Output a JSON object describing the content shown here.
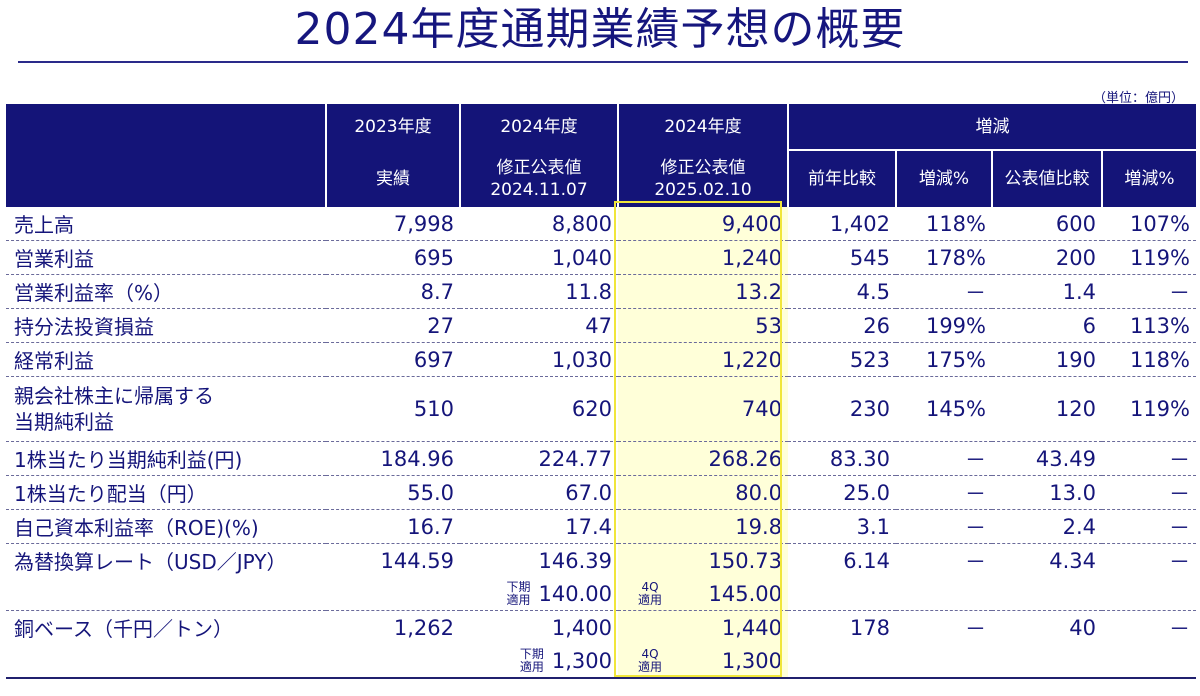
{
  "page": {
    "title": "2024年度通期業績予想の概要",
    "unit": "（単位：億円）"
  },
  "header": {
    "col1_top": "2023年度",
    "col1_bottom": "実績",
    "col2_top": "2024年度",
    "col2_bottom_line1": "修正公表値",
    "col2_bottom_line2": "2024.11.07",
    "col3_top": "2024年度",
    "col3_bottom_line1": "修正公表値",
    "col3_bottom_line2": "2025.02.10",
    "group": "増減",
    "sub1": "前年比較",
    "sub2": "増減%",
    "sub3": "公表値比較",
    "sub4": "増減%"
  },
  "rows": [
    {
      "label": "売上高",
      "v2023": "7,998",
      "v2024_1107": "8,800",
      "v2024_0210": "9,400",
      "yoy": "1,402",
      "yoy_pct": "118%",
      "vs": "600",
      "vs_pct": "107%"
    },
    {
      "label": "営業利益",
      "v2023": "695",
      "v2024_1107": "1,040",
      "v2024_0210": "1,240",
      "yoy": "545",
      "yoy_pct": "178%",
      "vs": "200",
      "vs_pct": "119%"
    },
    {
      "label": "営業利益率（%）",
      "v2023": "8.7",
      "v2024_1107": "11.8",
      "v2024_0210": "13.2",
      "yoy": "4.5",
      "yoy_pct": "－",
      "vs": "1.4",
      "vs_pct": "－"
    },
    {
      "label": "持分法投資損益",
      "v2023": "27",
      "v2024_1107": "47",
      "v2024_0210": "53",
      "yoy": "26",
      "yoy_pct": "199%",
      "vs": "6",
      "vs_pct": "113%"
    },
    {
      "label": "経常利益",
      "v2023": "697",
      "v2024_1107": "1,030",
      "v2024_0210": "1,220",
      "yoy": "523",
      "yoy_pct": "175%",
      "vs": "190",
      "vs_pct": "118%"
    },
    {
      "label_line1": "親会社株主に帰属する",
      "label_line2": "当期純利益",
      "v2023": "510",
      "v2024_1107": "620",
      "v2024_0210": "740",
      "yoy": "230",
      "yoy_pct": "145%",
      "vs": "120",
      "vs_pct": "119%"
    },
    {
      "label": "1株当たり当期純利益(円)",
      "v2023": "184.96",
      "v2024_1107": "224.77",
      "v2024_0210": "268.26",
      "yoy": "83.30",
      "yoy_pct": "－",
      "vs": "43.49",
      "vs_pct": "－"
    },
    {
      "label": "1株当たり配当（円）",
      "v2023": "55.0",
      "v2024_1107": "67.0",
      "v2024_0210": "80.0",
      "yoy": "25.0",
      "yoy_pct": "－",
      "vs": "13.0",
      "vs_pct": "－"
    },
    {
      "label": "自己資本利益率（ROE)(%)",
      "v2023": "16.7",
      "v2024_1107": "17.4",
      "v2024_0210": "19.8",
      "yoy": "3.1",
      "yoy_pct": "－",
      "vs": "2.4",
      "vs_pct": "－"
    },
    {
      "label": "為替換算レート（USD／JPY）",
      "v2023": "144.59",
      "v2024_1107": "146.39",
      "v2024_0210": "150.73",
      "yoy": "6.14",
      "yoy_pct": "－",
      "vs": "4.34",
      "vs_pct": "－",
      "sub": {
        "tag2_line1": "下期",
        "tag2_line2": "適用",
        "value2": "140.00",
        "tag3_line1": "4Q",
        "tag3_line2": "適用",
        "value3": "145.00"
      }
    },
    {
      "label": "銅ベース（千円／トン）",
      "v2023": "1,262",
      "v2024_1107": "1,400",
      "v2024_0210": "1,440",
      "yoy": "178",
      "yoy_pct": "－",
      "vs": "40",
      "vs_pct": "－",
      "sub": {
        "tag2_line1": "下期",
        "tag2_line2": "適用",
        "value2": "1,300",
        "tag3_line1": "4Q",
        "tag3_line2": "適用",
        "value3": "1,300"
      }
    }
  ],
  "colors": {
    "navy": "#141478",
    "text": "#15157a",
    "highlight_fill": "#ffffd9",
    "highlight_border": "#f0e63a"
  }
}
